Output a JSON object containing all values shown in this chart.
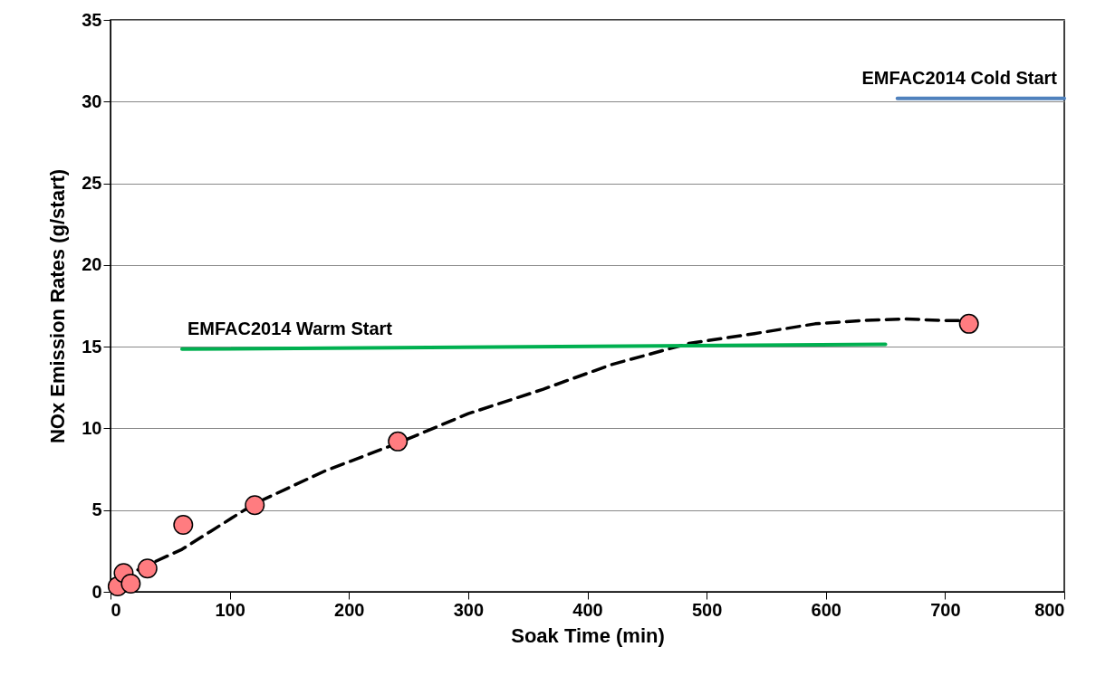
{
  "chart_data": {
    "type": "scatter",
    "xlabel": "Soak Time (min)",
    "ylabel": "NOx Emission Rates (g/start)",
    "xlim": [
      0,
      800
    ],
    "xticks": [
      0,
      100,
      200,
      300,
      400,
      500,
      600,
      700,
      800
    ],
    "ylim": [
      0,
      35
    ],
    "yticks": [
      0,
      5,
      10,
      15,
      20,
      25,
      30,
      35
    ],
    "grid": "y",
    "series": [
      {
        "type": "line",
        "color": "#000000",
        "line_style": "dashed",
        "marker": "none",
        "x": [
          8,
          30,
          60,
          84,
          121,
          180,
          241,
          300,
          363,
          420,
          485,
          540,
          591,
          630,
          667,
          700,
          713
        ],
        "values": [
          0.8,
          1.6,
          2.6,
          3.7,
          5.4,
          7.4,
          9.1,
          10.9,
          12.4,
          13.9,
          15.2,
          15.8,
          16.4,
          16.6,
          16.7,
          16.6,
          16.6
        ]
      },
      {
        "type": "line",
        "name": "EMFAC2014 Warm Start",
        "color": "#00b050",
        "line_style": "solid",
        "marker": "none",
        "x": [
          60,
          650
        ],
        "values": [
          14.85,
          15.15
        ]
      },
      {
        "type": "line",
        "name": "EMFAC2014 Cold Start",
        "color": "#4f81bd",
        "line_style": "solid",
        "marker": "none",
        "x": [
          660,
          800
        ],
        "values": [
          30.2,
          30.2
        ]
      },
      {
        "color": "#ff7c80",
        "marker": "circle",
        "x": [
          6,
          11,
          17,
          31,
          61,
          121,
          241,
          720
        ],
        "values": [
          0.33,
          1.15,
          0.5,
          1.43,
          4.1,
          5.3,
          9.2,
          16.4
        ]
      }
    ]
  }
}
